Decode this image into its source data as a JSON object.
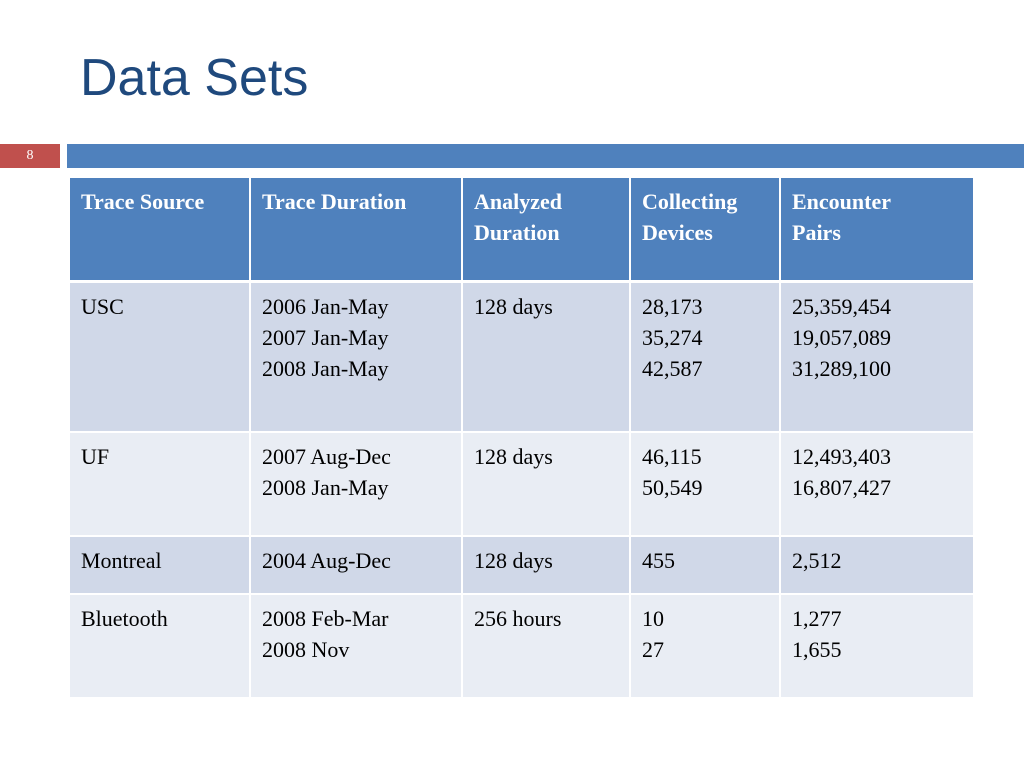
{
  "slide": {
    "title": "Data Sets",
    "number": "8"
  },
  "table": {
    "headers": [
      [
        "Trace Source"
      ],
      [
        "Trace Duration"
      ],
      [
        "Analyzed",
        "Duration"
      ],
      [
        "Collecting",
        "Devices"
      ],
      [
        "Encounter",
        "Pairs"
      ]
    ],
    "rows": [
      {
        "source": [
          "USC"
        ],
        "trace_duration": [
          "2006 Jan-May",
          "2007 Jan-May",
          "2008 Jan-May"
        ],
        "analyzed_duration": [
          "128 days"
        ],
        "collecting_devices": [
          "28,173",
          "35,274",
          "42,587"
        ],
        "encounter_pairs": [
          "25,359,454",
          "19,057,089",
          "31,289,100"
        ]
      },
      {
        "source": [
          "UF"
        ],
        "trace_duration": [
          "2007 Aug-Dec",
          "2008 Jan-May"
        ],
        "analyzed_duration": [
          "128 days"
        ],
        "collecting_devices": [
          "46,115",
          "50,549"
        ],
        "encounter_pairs": [
          "12,493,403",
          "16,807,427"
        ]
      },
      {
        "source": [
          "Montreal"
        ],
        "trace_duration": [
          "2004 Aug-Dec"
        ],
        "analyzed_duration": [
          "128 days"
        ],
        "collecting_devices": [
          "455"
        ],
        "encounter_pairs": [
          "2,512"
        ]
      },
      {
        "source": [
          "Bluetooth"
        ],
        "trace_duration": [
          "2008 Feb-Mar",
          "2008 Nov"
        ],
        "analyzed_duration": [
          "256 hours"
        ],
        "collecting_devices": [
          "10",
          "27"
        ],
        "encounter_pairs": [
          "1,277",
          "1,655"
        ]
      }
    ]
  },
  "colors": {
    "title": "#1f497d",
    "header_bg": "#4f81bd",
    "row_band_dark": "#d0d8e8",
    "row_band_light": "#e9edf4",
    "slide_number_bg": "#c0504d"
  }
}
